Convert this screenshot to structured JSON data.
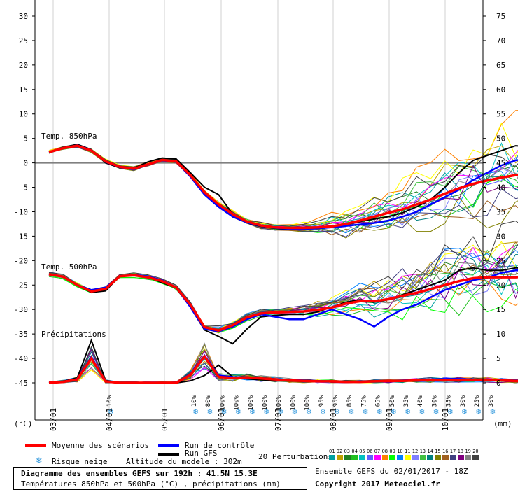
{
  "chart_data": {
    "type": "line",
    "title": "Diagramme des ensembles GEFS sur 192h : 41.5N 15.3E",
    "subtitle": "Températures 850hPa et 500hPa (°C) , précipitations (mm)",
    "ylabel_left": "(°C)",
    "ylabel_right": "(mm)",
    "ylim_left": [
      -50,
      30
    ],
    "ylim_right": [
      -5,
      75
    ],
    "left_ticks": [
      30,
      25,
      20,
      15,
      10,
      5,
      0,
      -5,
      -10,
      -15,
      -20,
      -25,
      -30,
      -35,
      -40,
      -45
    ],
    "right_ticks": [
      75,
      70,
      65,
      60,
      55,
      50,
      45,
      40,
      35,
      30,
      25,
      20,
      15,
      10,
      5,
      0
    ],
    "x_dates": [
      "03/01",
      "04/01",
      "05/01",
      "06/01",
      "07/01",
      "08/01",
      "09/01",
      "10/01"
    ],
    "x_step_hours": 6,
    "panel_labels": [
      "Temp. 850hPa",
      "Temp. 500hPa",
      "Précipitations"
    ],
    "t850": {
      "mean": [
        2.2,
        3.0,
        3.5,
        2.5,
        0.3,
        -0.8,
        -1.2,
        -0.3,
        0.6,
        0.3,
        -2.5,
        -6.0,
        -8.5,
        -10.5,
        -12.0,
        -12.8,
        -13.2,
        -13.3,
        -13.3,
        -13.2,
        -13.0,
        -12.5,
        -11.8,
        -11.0,
        -10.2,
        -9.5,
        -8.5,
        -7.5,
        -6.3,
        -5.2,
        -4.3,
        -3.6,
        -3.0,
        -2.5,
        -2.0,
        -1.5,
        -1.0,
        -0.5
      ],
      "control": [
        2.2,
        3.0,
        3.6,
        2.6,
        0.2,
        -0.9,
        -1.3,
        -0.4,
        0.5,
        0.2,
        -2.8,
        -6.5,
        -9.0,
        -11.0,
        -12.2,
        -12.9,
        -13.3,
        -13.5,
        -13.5,
        -13.4,
        -13.2,
        -12.9,
        -12.6,
        -12.3,
        -11.8,
        -11.0,
        -10.0,
        -8.5,
        -7.0,
        -5.5,
        -3.5,
        -2.0,
        -0.5,
        0.5,
        1.0,
        1.5,
        2.0,
        2.0
      ],
      "gfs": [
        2.3,
        3.1,
        3.8,
        2.7,
        0.0,
        -1.0,
        -1.1,
        0.2,
        1.0,
        0.8,
        -2.0,
        -5.0,
        -6.5,
        -10.5,
        -12.3,
        -13.0,
        -13.4,
        -13.6,
        -13.6,
        -13.3,
        -13.0,
        -12.6,
        -12.0,
        -11.5,
        -11.0,
        -10.2,
        -9.0,
        -7.5,
        -5.0,
        -2.0,
        0.5,
        1.5,
        2.5,
        3.5,
        3.3,
        3.0,
        2.6,
        2.4
      ]
    },
    "t500": {
      "mean": [
        -22.8,
        -23.3,
        -25.0,
        -26.3,
        -25.8,
        -23.2,
        -23.0,
        -23.4,
        -24.2,
        -25.5,
        -29.0,
        -33.6,
        -34.3,
        -33.2,
        -31.6,
        -30.8,
        -30.6,
        -30.5,
        -30.4,
        -30.1,
        -29.6,
        -28.8,
        -28.3,
        -28.3,
        -27.9,
        -27.2,
        -26.6,
        -25.8,
        -25.0,
        -24.2,
        -23.6,
        -23.4,
        -23.4,
        -23.4,
        -23.2,
        -22.8,
        -22.4,
        -22.6
      ],
      "control": [
        -22.8,
        -23.3,
        -25.0,
        -26.0,
        -25.5,
        -23.2,
        -22.9,
        -23.2,
        -24.0,
        -25.5,
        -29.5,
        -34.0,
        -34.5,
        -33.5,
        -32.0,
        -31.0,
        -31.5,
        -32.0,
        -32.0,
        -31.0,
        -30.0,
        -31.0,
        -32.0,
        -33.5,
        -31.5,
        -30.0,
        -29.0,
        -27.5,
        -26.0,
        -25.0,
        -24.0,
        -23.5,
        -22.5,
        -22.0,
        -22.0,
        -21.5,
        -21.0,
        -21.0
      ],
      "gfs": [
        -22.8,
        -23.2,
        -25.1,
        -26.5,
        -26.2,
        -23.2,
        -23.0,
        -23.4,
        -24.5,
        -25.6,
        -29.5,
        -34.2,
        -35.5,
        -37.0,
        -34.0,
        -31.5,
        -31.2,
        -31.0,
        -31.0,
        -30.5,
        -29.5,
        -28.5,
        -28.0,
        -28.5,
        -28.0,
        -27.0,
        -26.0,
        -25.0,
        -24.0,
        -22.0,
        -21.5,
        -22.0,
        -22.0,
        -21.5,
        -21.5,
        -22.0,
        -23.0,
        -23.5
      ]
    },
    "precip": {
      "mean": [
        0.0,
        0.2,
        0.7,
        5.0,
        0.3,
        0.0,
        0.0,
        0.0,
        0.0,
        0.0,
        1.6,
        5.4,
        1.2,
        1.0,
        1.1,
        0.9,
        0.7,
        0.5,
        0.4,
        0.3,
        0.3,
        0.2,
        0.2,
        0.3,
        0.4,
        0.4,
        0.5,
        0.6,
        0.6,
        0.6,
        0.6,
        0.6,
        0.5,
        0.4,
        0.4,
        0.3,
        0.2,
        0.1
      ],
      "control": [
        0.0,
        0.2,
        0.8,
        5.3,
        0.3,
        0.0,
        0.0,
        0.0,
        0.0,
        0.0,
        1.8,
        5.6,
        1.5,
        1.2,
        1.1,
        0.9,
        0.7,
        0.6,
        0.5,
        0.4,
        0.3,
        0.2,
        0.2,
        0.3,
        0.4,
        0.5,
        0.6,
        0.7,
        0.8,
        0.8,
        0.7,
        0.6,
        0.5,
        0.5,
        0.4,
        0.3,
        0.2,
        0.1
      ],
      "gfs": [
        0.0,
        0.3,
        1.0,
        8.7,
        0.5,
        0.0,
        0.0,
        0.0,
        0.0,
        0.0,
        0.4,
        1.5,
        3.6,
        1.2,
        0.8,
        0.6,
        0.5,
        0.4,
        0.3,
        0.3,
        0.2,
        0.2,
        0.2,
        0.3,
        0.4,
        0.5,
        0.6,
        0.7,
        0.8,
        0.7,
        0.6,
        0.5,
        0.4,
        0.4,
        0.3,
        0.3,
        0.2,
        0.1
      ]
    },
    "snow_risk": [
      {
        "day": "03/01",
        "slot": 4,
        "pct": "10%"
      },
      {
        "day": "05/01",
        "slot": 10,
        "pct": "10%"
      },
      {
        "day": "05/01",
        "slot": 11,
        "pct": "80%"
      },
      {
        "day": "05/01",
        "slot": 12,
        "pct": "100%"
      },
      {
        "day": "06/01",
        "slot": 13,
        "pct": "100%"
      },
      {
        "day": "06/01",
        "slot": 14,
        "pct": "100%"
      },
      {
        "day": "06/01",
        "slot": 15,
        "pct": "100%"
      },
      {
        "day": "06/01",
        "slot": 16,
        "pct": "100%"
      },
      {
        "day": "07/01",
        "slot": 17,
        "pct": "100%"
      },
      {
        "day": "07/01",
        "slot": 18,
        "pct": "100%"
      },
      {
        "day": "07/01",
        "slot": 19,
        "pct": "95%"
      },
      {
        "day": "07/01",
        "slot": 20,
        "pct": "95%"
      },
      {
        "day": "08/01",
        "slot": 21,
        "pct": "85%"
      },
      {
        "day": "08/01",
        "slot": 22,
        "pct": "75%"
      },
      {
        "day": "08/01",
        "slot": 23,
        "pct": "65%"
      },
      {
        "day": "08/01",
        "slot": 24,
        "pct": "50%"
      },
      {
        "day": "09/01",
        "slot": 25,
        "pct": "35%"
      },
      {
        "day": "09/01",
        "slot": 26,
        "pct": "40%"
      },
      {
        "day": "09/01",
        "slot": 27,
        "pct": "30%"
      },
      {
        "day": "09/01",
        "slot": 28,
        "pct": "35%"
      },
      {
        "day": "10/01",
        "slot": 29,
        "pct": "30%"
      },
      {
        "day": "10/01",
        "slot": 30,
        "pct": "25%"
      },
      {
        "day": "10/01",
        "slot": 31,
        "pct": "30%"
      }
    ],
    "perturbation_colors": [
      "#00a0a0",
      "#c0a000",
      "#208020",
      "#20c020",
      "#00c0c0",
      "#6060ff",
      "#ff00ff",
      "#ff8000",
      "#00ff00",
      "#0080ff",
      "#ffff00",
      "#8080ff",
      "#40c040",
      "#008080",
      "#808000",
      "#a06020",
      "#404080",
      "#800080",
      "#808080",
      "#404040"
    ],
    "perturbation_labels": [
      "01",
      "02",
      "03",
      "04",
      "05",
      "06",
      "07",
      "08",
      "09",
      "10",
      "11",
      "12",
      "13",
      "14",
      "15",
      "16",
      "17",
      "18",
      "19",
      "20"
    ],
    "series_colors": {
      "mean": "#ff0000",
      "control": "#0000ff",
      "gfs": "#000000"
    }
  },
  "legend": {
    "mean_label": "Moyenne des scénarios",
    "control_label": "Run de contrôle",
    "gfs_label": "Run GFS",
    "snow_label": "Risque neige",
    "altitude": "Altitude du modele : 302m",
    "perturbations": "20 Perturbations"
  },
  "footer": {
    "run_info": "Ensemble GEFS du 02/01/2017 - 18Z",
    "copyright": "Copyright 2017 Meteociel.fr"
  }
}
